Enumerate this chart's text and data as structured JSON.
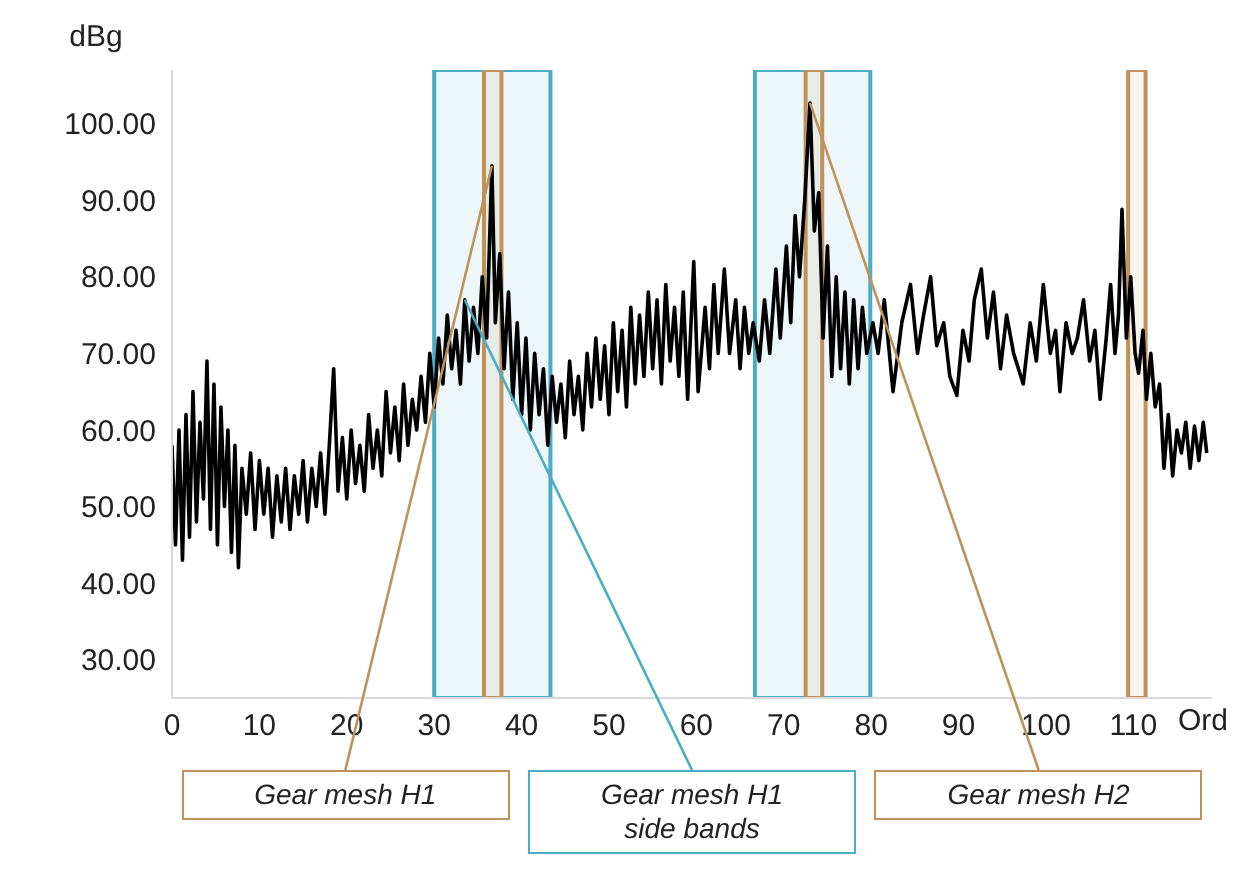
{
  "chart_data": {
    "type": "line",
    "xlabel": "Ord",
    "ylabel": "dBg",
    "xlim": [
      0,
      119
    ],
    "xticks": [
      0,
      10,
      20,
      30,
      40,
      50,
      60,
      70,
      80,
      90,
      100,
      110
    ],
    "ylim": [
      25,
      107
    ],
    "yticks": [
      {
        "value": 30,
        "label": "30.00"
      },
      {
        "value": 40,
        "label": "40.00"
      },
      {
        "value": 50,
        "label": "50.00"
      },
      {
        "value": 60,
        "label": "60.00"
      },
      {
        "value": 70,
        "label": "70.00"
      },
      {
        "value": 80,
        "label": "80.00"
      },
      {
        "value": 90,
        "label": "90.00"
      },
      {
        "value": 100,
        "label": "100.00"
      }
    ],
    "series": [
      {
        "color": "#000000",
        "x": [
          0,
          0.4,
          0.8,
          1.2,
          1.6,
          2,
          2.4,
          2.8,
          3.2,
          3.6,
          4,
          4.4,
          4.8,
          5.2,
          5.6,
          6,
          6.4,
          6.8,
          7.2,
          7.6,
          8,
          8.5,
          9,
          9.5,
          10,
          10.5,
          11,
          11.5,
          12,
          12.5,
          13,
          13.5,
          14,
          14.5,
          15,
          15.5,
          16,
          16.5,
          17,
          17.5,
          18,
          18.5,
          19,
          19.5,
          20,
          20.5,
          21,
          21.5,
          22,
          22.5,
          23,
          23.5,
          24,
          24.5,
          25,
          25.5,
          26,
          26.5,
          27,
          27.5,
          28,
          28.5,
          29,
          29.5,
          30,
          30.5,
          31,
          31.5,
          32,
          32.5,
          33,
          33.5,
          34,
          34.5,
          35,
          35.5,
          36,
          36.6,
          37,
          37.5,
          38,
          38.5,
          39,
          39.5,
          40,
          40.5,
          41,
          41.5,
          42,
          42.5,
          43,
          43.5,
          44,
          44.5,
          45,
          45.5,
          46,
          46.5,
          47,
          47.5,
          48,
          48.5,
          49,
          49.5,
          50,
          50.5,
          51,
          51.5,
          52,
          52.5,
          53,
          53.5,
          54,
          54.5,
          55,
          55.5,
          56,
          56.5,
          57,
          57.5,
          58,
          58.5,
          59,
          59.7,
          60.2,
          61,
          61.5,
          62,
          62.5,
          63.2,
          63.8,
          64.5,
          65,
          65.5,
          66,
          66.5,
          67.2,
          67.8,
          68.4,
          69.1,
          69.6,
          70.3,
          70.8,
          71.3,
          71.8,
          72.4,
          73,
          73.5,
          74,
          74.5,
          75,
          75.5,
          76,
          76.5,
          77,
          77.5,
          78,
          78.5,
          79,
          79.5,
          80.2,
          80.8,
          81.5,
          82.5,
          83.5,
          84.5,
          85.3,
          86,
          86.8,
          87.5,
          88.3,
          89,
          89.8,
          90.5,
          91.2,
          91.8,
          92.6,
          93.3,
          94,
          94.8,
          95.5,
          96.3,
          97.4,
          98.2,
          98.9,
          99.7,
          100.5,
          101.1,
          101.6,
          102.3,
          103,
          103.6,
          104.3,
          105,
          105.6,
          106.2,
          106.9,
          107.4,
          107.9,
          108.3,
          108.7,
          109.2,
          109.7,
          110.2,
          110.6,
          111.1,
          111.5,
          112,
          112.5,
          113,
          113.5,
          114,
          114.5,
          115,
          115.5,
          116,
          116.5,
          117,
          117.5,
          118,
          118.4
        ],
        "values": [
          58,
          45,
          60,
          43,
          62,
          46,
          65,
          48,
          61,
          51,
          69,
          47,
          66,
          45,
          63,
          50,
          60,
          44,
          58,
          42,
          55,
          49,
          57,
          47,
          56,
          49,
          55,
          46,
          54,
          48,
          55,
          47,
          54,
          49,
          56,
          48,
          55,
          50,
          57,
          49,
          58,
          68,
          52,
          59,
          51,
          60,
          53,
          58,
          52,
          62,
          55,
          60,
          54,
          65,
          57,
          63,
          56,
          66,
          58,
          64,
          60,
          67,
          61,
          70,
          63,
          72,
          66,
          75,
          68,
          73,
          66,
          77,
          69,
          76,
          70,
          80,
          72,
          94.5,
          74,
          83,
          68,
          78,
          64,
          74,
          62,
          72,
          60,
          70,
          62,
          68,
          58,
          67,
          61,
          66,
          59,
          69,
          62,
          67,
          60,
          70,
          63,
          72,
          64,
          71,
          62,
          74,
          65,
          73,
          63,
          76,
          66,
          75,
          67,
          78,
          68,
          77,
          66,
          79,
          69,
          76,
          67,
          78,
          64,
          82,
          65,
          76,
          68,
          79,
          70,
          81,
          70,
          77,
          68,
          76,
          70,
          74,
          69,
          77,
          70,
          81,
          72,
          84,
          74,
          88,
          80,
          90,
          102.7,
          86,
          91,
          72,
          84,
          67,
          80,
          68,
          78,
          66,
          77,
          68,
          76,
          70,
          74,
          70,
          77,
          65,
          74,
          79,
          70,
          75,
          80,
          71,
          74,
          67,
          64.5,
          73,
          69,
          77,
          81,
          72,
          78,
          68,
          75,
          70,
          66,
          74,
          69,
          79,
          70,
          73,
          65,
          74,
          70,
          72,
          77,
          69,
          73,
          64,
          72,
          79,
          70,
          75,
          88.8,
          72,
          80,
          70,
          67.4,
          73,
          64,
          70,
          63,
          66,
          55,
          62,
          54,
          60,
          57,
          61,
          55,
          60.5,
          56,
          61,
          57
        ]
      }
    ],
    "bands": [
      {
        "axis": "x",
        "from": 30,
        "to": 43.3,
        "color": "#4bacc6"
      },
      {
        "axis": "x",
        "from": 66.7,
        "to": 79.9,
        "color": "#4bacc6"
      },
      {
        "axis": "x",
        "from": 35.7,
        "to": 37.7,
        "color": "#c0925a"
      },
      {
        "axis": "x",
        "from": 72.5,
        "to": 74.4,
        "color": "#c0925a"
      },
      {
        "axis": "x",
        "from": 109.4,
        "to": 111.4,
        "color": "#c0925a"
      }
    ],
    "annotations": [
      {
        "text": "Gear mesh H1",
        "x": 36.6,
        "y": 94.5
      },
      {
        "text": "Gear mesh H1 side bands",
        "x": 33.5,
        "y": 77
      },
      {
        "text": "Gear mesh H2",
        "x": 73,
        "y": 102.7
      }
    ]
  }
}
